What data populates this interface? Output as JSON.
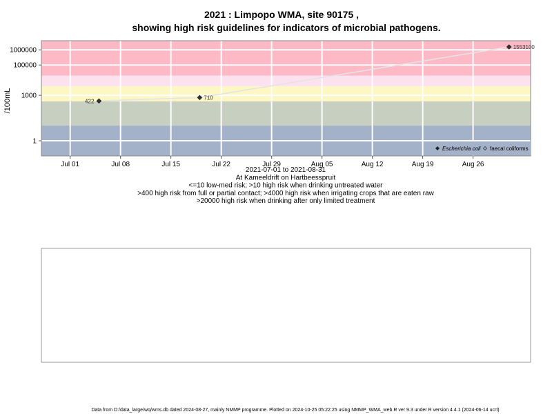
{
  "chart_data": {
    "type": "scatter",
    "title_line1": "2021 : Limpopo WMA, site 90175 ,",
    "title_line2": "showing high risk guidelines for indicators of microbial pathogens.",
    "ylabel": "/100mL",
    "y_scale": "log",
    "ylim": [
      0.1,
      4000000
    ],
    "xlim": [
      "2021-06-27",
      "2021-09-03"
    ],
    "y_ticks": [
      {
        "value": 1000000,
        "label": "1000000"
      },
      {
        "value": 100000,
        "label": "100000"
      },
      {
        "value": 1000,
        "label": "1000"
      },
      {
        "value": 1,
        "label": "1"
      }
    ],
    "x_ticks": [
      {
        "date": "2021-07-01",
        "label": "Jul 01"
      },
      {
        "date": "2021-07-08",
        "label": "Jul 08"
      },
      {
        "date": "2021-07-15",
        "label": "Jul 15"
      },
      {
        "date": "2021-07-22",
        "label": "Jul 22"
      },
      {
        "date": "2021-07-29",
        "label": "Jul 29"
      },
      {
        "date": "2021-08-05",
        "label": "Aug 05"
      },
      {
        "date": "2021-08-12",
        "label": "Aug 12"
      },
      {
        "date": "2021-08-19",
        "label": "Aug 19"
      },
      {
        "date": "2021-08-26",
        "label": "Aug 26"
      }
    ],
    "bands": [
      {
        "from": 0.1,
        "to": 10,
        "color": "#a3b1c9"
      },
      {
        "from": 10,
        "to": 400,
        "color": "#c6cfc0"
      },
      {
        "from": 400,
        "to": 4000,
        "color": "#fdf7c4"
      },
      {
        "from": 4000,
        "to": 20000,
        "color": "#fce1ef"
      },
      {
        "from": 20000,
        "to": 4000000,
        "color": "#fdb9c6"
      }
    ],
    "grid": true,
    "series": [
      {
        "name": "Escherichia coli",
        "marker": "filled-diamond",
        "color": "#333333",
        "points": [
          {
            "date": "2021-07-05",
            "value": 422,
            "label": "422"
          },
          {
            "date": "2021-07-19",
            "value": 710,
            "label": "710"
          },
          {
            "date": "2021-08-31",
            "value": 1553100,
            "label": "1553100"
          }
        ]
      }
    ],
    "legend": {
      "position": "bottom-right",
      "entries": [
        {
          "label": "Escherichia coli",
          "marker": "filled-diamond",
          "italic": true
        },
        {
          "label": "faecal coliforms",
          "marker": "open-diamond",
          "italic": false
        }
      ]
    },
    "x_caption_lines": [
      "2021-07-01 to 2021-08-31",
      "At Kameeldrift on Hartbeesspruit",
      "<=10 low-med risk; >10 high risk when drinking untreated water",
      ">400 high risk from full or partial contact; >4000 high risk when irrigating crops that are eaten raw",
      ">20000 high risk when drinking after only limited treatment"
    ]
  },
  "footer": "Data from D:/data_large/wq/wms.db dated 2024-08-27, mainly NMMP programme. Plotted on 2024-10-25 05:22:25 using NMMP_WMA_web.R ver 9.3 under R version 4.4.1 (2024-06-14 ucrt)"
}
